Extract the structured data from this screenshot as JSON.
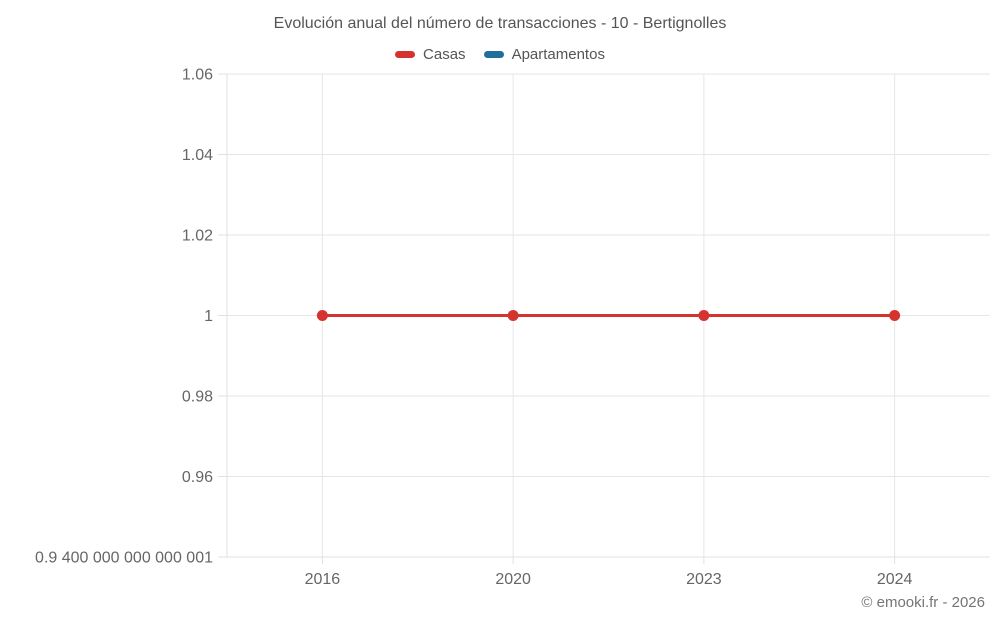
{
  "title": "Evolución anual del número de transacciones - 10 - Bertignolles",
  "legend": [
    {
      "label": "Casas",
      "color": "#d5342e"
    },
    {
      "label": "Apartamentos",
      "color": "#1f6e9c"
    }
  ],
  "footer": {
    "copyright": "© emooki.fr - 2026"
  },
  "chart_data": {
    "type": "line",
    "title": "Evolución anual del número de transacciones - 10 - Bertignolles",
    "categories": [
      "2016",
      "2020",
      "2023",
      "2024"
    ],
    "series": [
      {
        "name": "Casas",
        "color": "#d5342e",
        "values": [
          1,
          1,
          1,
          1
        ]
      },
      {
        "name": "Apartamentos",
        "color": "#1f6e9c",
        "values": []
      }
    ],
    "ylim": [
      0.9400000000000001,
      1.06
    ],
    "y_ticks": [
      {
        "value": 0.9400000000000001,
        "label": "0.9 400 000 000 000 001"
      },
      {
        "value": 0.96,
        "label": "0.96"
      },
      {
        "value": 0.98,
        "label": "0.98"
      },
      {
        "value": 1,
        "label": "1"
      },
      {
        "value": 1.02,
        "label": "1.02"
      },
      {
        "value": 1.04,
        "label": "1.04"
      },
      {
        "value": 1.06,
        "label": "1.06"
      }
    ],
    "grid": true,
    "legend_position": "top",
    "colors": {
      "grid": "#e6e6e6",
      "axis": "#e0e0e0",
      "tick_text": "#666666",
      "title_text": "#555555"
    }
  }
}
